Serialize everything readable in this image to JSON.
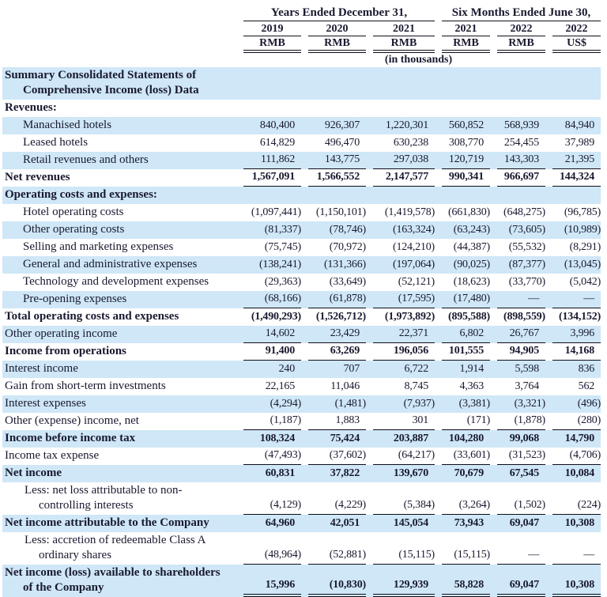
{
  "colors": {
    "row_shade": "#cfe7f7",
    "ink": "#191930",
    "rule": "#0d0d1a"
  },
  "table": {
    "col_groups": [
      {
        "label": "Years Ended December 31,"
      },
      {
        "label": "Six Months Ended June 30,"
      }
    ],
    "years": [
      "2019",
      "2020",
      "2021",
      "2021",
      "2022",
      "2022"
    ],
    "currencies": [
      "RMB",
      "RMB",
      "RMB",
      "RMB",
      "RMB",
      "US$"
    ],
    "units_note": "(in thousands)",
    "rows": [
      {
        "label": "Summary Consolidated Statements of\nComprehensive Income (loss) Data",
        "ind": "hang",
        "bold": true,
        "shade": true,
        "ul": "none",
        "values": null
      },
      {
        "label": "Revenues:",
        "ind": "none",
        "bold": true,
        "shade": false,
        "ul": "none",
        "values": null
      },
      {
        "label": "Manachised hotels",
        "ind": "item",
        "bold": false,
        "shade": true,
        "ul": "none",
        "values": [
          "840,400",
          "926,307",
          "1,220,301",
          "560,852",
          "568,939",
          "84,940"
        ]
      },
      {
        "label": "Leased hotels",
        "ind": "item",
        "bold": false,
        "shade": false,
        "ul": "none",
        "values": [
          "614,829",
          "496,470",
          "630,238",
          "308,770",
          "254,455",
          "37,989"
        ]
      },
      {
        "label": "Retail revenues and others",
        "ind": "item",
        "bold": false,
        "shade": true,
        "ul": "single",
        "values": [
          "111,862",
          "143,775",
          "297,038",
          "120,719",
          "143,303",
          "21,395"
        ]
      },
      {
        "label": "Net revenues",
        "ind": "none",
        "bold": true,
        "shade": false,
        "ul": "single",
        "values": [
          "1,567,091",
          "1,566,552",
          "2,147,577",
          "990,341",
          "966,697",
          "144,324"
        ]
      },
      {
        "label": "Operating costs and expenses:",
        "ind": "none",
        "bold": true,
        "shade": true,
        "ul": "none",
        "values": null
      },
      {
        "label": "Hotel operating costs",
        "ind": "item",
        "bold": false,
        "shade": false,
        "ul": "none",
        "values": [
          "(1,097,441)",
          "(1,150,101)",
          "(1,419,578)",
          "(661,830)",
          "(648,275)",
          "(96,785)"
        ]
      },
      {
        "label": "Other operating costs",
        "ind": "item",
        "bold": false,
        "shade": true,
        "ul": "none",
        "values": [
          "(81,337)",
          "(78,746)",
          "(163,324)",
          "(63,243)",
          "(73,605)",
          "(10,989)"
        ]
      },
      {
        "label": "Selling and marketing expenses",
        "ind": "item",
        "bold": false,
        "shade": false,
        "ul": "none",
        "values": [
          "(75,745)",
          "(70,972)",
          "(124,210)",
          "(44,387)",
          "(55,532)",
          "(8,291)"
        ]
      },
      {
        "label": "General and administrative expenses",
        "ind": "item",
        "bold": false,
        "shade": true,
        "ul": "none",
        "values": [
          "(138,241)",
          "(131,366)",
          "(197,064)",
          "(90,025)",
          "(87,377)",
          "(13,045)"
        ]
      },
      {
        "label": "Technology and development expenses",
        "ind": "item",
        "bold": false,
        "shade": false,
        "ul": "none",
        "values": [
          "(29,363)",
          "(33,649)",
          "(52,121)",
          "(18,623)",
          "(33,770)",
          "(5,042)"
        ]
      },
      {
        "label": "Pre-opening expenses",
        "ind": "item",
        "bold": false,
        "shade": true,
        "ul": "single",
        "values": [
          "(68,166)",
          "(61,878)",
          "(17,595)",
          "(17,480)",
          "—",
          "—"
        ]
      },
      {
        "label": "Total operating costs and expenses",
        "ind": "none",
        "bold": true,
        "shade": false,
        "ul": "none",
        "values": [
          "(1,490,293)",
          "(1,526,712)",
          "(1,973,892)",
          "(895,588)",
          "(898,559)",
          "(134,152)"
        ]
      },
      {
        "label": "Other operating income",
        "ind": "none",
        "bold": false,
        "shade": true,
        "ul": "single",
        "values": [
          "14,602",
          "23,429",
          "22,371",
          "6,802",
          "26,767",
          "3,996"
        ]
      },
      {
        "label": "Income from operations",
        "ind": "none",
        "bold": true,
        "shade": false,
        "ul": "single",
        "values": [
          "91,400",
          "63,269",
          "196,056",
          "101,555",
          "94,905",
          "14,168"
        ]
      },
      {
        "label": "Interest income",
        "ind": "none",
        "bold": false,
        "shade": true,
        "ul": "none",
        "values": [
          "240",
          "707",
          "6,722",
          "1,914",
          "5,598",
          "836"
        ]
      },
      {
        "label": "Gain from short-term investments",
        "ind": "none",
        "bold": false,
        "shade": false,
        "ul": "none",
        "values": [
          "22,165",
          "11,046",
          "8,745",
          "4,363",
          "3,764",
          "562"
        ]
      },
      {
        "label": "Interest expenses",
        "ind": "none",
        "bold": false,
        "shade": true,
        "ul": "none",
        "values": [
          "(4,294)",
          "(1,481)",
          "(7,937)",
          "(3,381)",
          "(3,321)",
          "(496)"
        ]
      },
      {
        "label": "Other (expense) income, net",
        "ind": "none",
        "bold": false,
        "shade": false,
        "ul": "single",
        "values": [
          "(1,187)",
          "1,883",
          "301",
          "(171)",
          "(1,878)",
          "(280)"
        ]
      },
      {
        "label": "Income before income tax",
        "ind": "none",
        "bold": true,
        "shade": true,
        "ul": "none",
        "values": [
          "108,324",
          "75,424",
          "203,887",
          "104,280",
          "99,068",
          "14,790"
        ]
      },
      {
        "label": "Income tax expense",
        "ind": "none",
        "bold": false,
        "shade": false,
        "ul": "single",
        "values": [
          "(47,493)",
          "(37,602)",
          "(64,217)",
          "(33,601)",
          "(31,523)",
          "(4,706)"
        ]
      },
      {
        "label": "Net income",
        "ind": "none",
        "bold": true,
        "shade": true,
        "ul": "none",
        "values": [
          "60,831",
          "37,822",
          "139,670",
          "70,679",
          "67,545",
          "10,084"
        ]
      },
      {
        "label": "Less: net loss attributable to non-\ncontrolling interests",
        "ind": "less",
        "bold": false,
        "shade": false,
        "ul": "single",
        "values": [
          "(4,129)",
          "(4,229)",
          "(5,384)",
          "(3,264)",
          "(1,502)",
          "(224)"
        ]
      },
      {
        "label": "Net income attributable to the Company",
        "ind": "none",
        "bold": true,
        "shade": true,
        "ul": "none",
        "values": [
          "64,960",
          "42,051",
          "145,054",
          "73,943",
          "69,047",
          "10,308"
        ]
      },
      {
        "label": "Less: accretion of redeemable Class A\nordinary shares",
        "ind": "less",
        "bold": false,
        "shade": false,
        "ul": "single",
        "values": [
          "(48,964)",
          "(52,881)",
          "(15,115)",
          "(15,115)",
          "—",
          "—"
        ]
      },
      {
        "label": "Net income (loss) available to shareholders\nof the Company",
        "ind": "hang",
        "bold": true,
        "shade": true,
        "ul": "double",
        "values": [
          "15,996",
          "(10,830)",
          "129,939",
          "58,828",
          "69,047",
          "10,308"
        ]
      }
    ]
  }
}
